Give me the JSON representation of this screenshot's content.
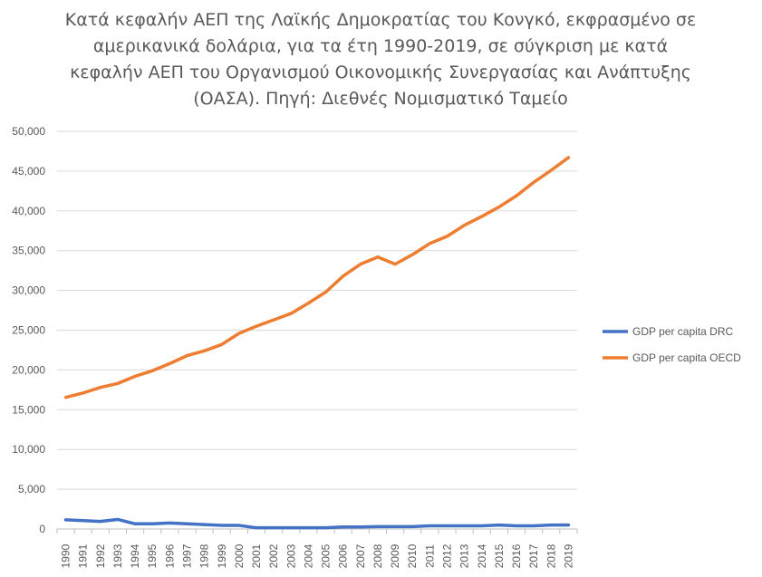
{
  "chart_data": {
    "type": "line",
    "title": "Κατά κεφαλήν ΑΕΠ της Λαϊκής Δημοκρατίας του Κονγκό, εκφρασμένο σε αμερικανικά δολάρια, για τα έτη 1990-2019, σε σύγκριση με κατά κεφαλήν ΑΕΠ του Οργανισμού Οικονομικής Συνεργασίας και Ανάπτυξης (ΟΑΣΑ). Πηγή: Διεθνές Νομισματικό Ταμείο",
    "xlabel": "",
    "ylabel": "",
    "ylim": [
      0,
      50000
    ],
    "y_ticks": [
      "0",
      "5,000",
      "10,000",
      "15,000",
      "20,000",
      "25,000",
      "30,000",
      "35,000",
      "40,000",
      "45,000",
      "50,000"
    ],
    "y_tick_values": [
      0,
      5000,
      10000,
      15000,
      20000,
      25000,
      30000,
      35000,
      40000,
      45000,
      50000
    ],
    "grid": true,
    "legend_position": "right",
    "categories": [
      "1990",
      "1991",
      "1992",
      "1993",
      "1994",
      "1995",
      "1996",
      "1997",
      "1998",
      "1999",
      "2000",
      "2001",
      "2002",
      "2003",
      "2004",
      "2005",
      "2006",
      "2007",
      "2008",
      "2009",
      "2010",
      "2011",
      "2012",
      "2013",
      "2014",
      "2015",
      "2016",
      "2017",
      "2018",
      "2019"
    ],
    "series": [
      {
        "name": "GDP per capita DRC",
        "color": "#4472C4",
        "values": [
          1150,
          1050,
          950,
          1200,
          650,
          650,
          750,
          650,
          550,
          450,
          450,
          150,
          150,
          150,
          150,
          150,
          250,
          250,
          300,
          300,
          300,
          400,
          400,
          400,
          400,
          500,
          400,
          400,
          500,
          500
        ]
      },
      {
        "name": "GDP per capita OECD",
        "color": "#ED7D31",
        "values": [
          16550,
          17100,
          17800,
          18300,
          19200,
          19900,
          20800,
          21800,
          22400,
          23200,
          24600,
          25500,
          26300,
          27100,
          28400,
          29800,
          31800,
          33300,
          34200,
          33300,
          34500,
          35900,
          36800,
          38200,
          39300,
          40500,
          41900,
          43600,
          45100,
          46700
        ]
      }
    ]
  }
}
